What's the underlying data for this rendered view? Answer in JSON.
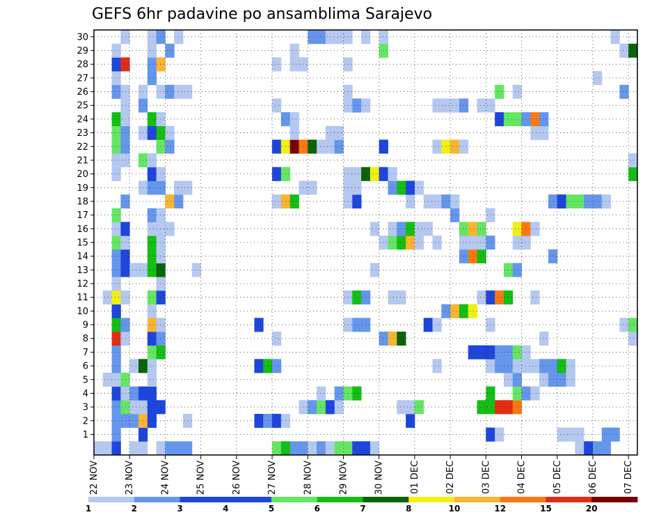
{
  "chart_data": {
    "type": "heatmap",
    "title": "GEFS 6hr padavine po ansamblima Sarajevo",
    "x_labels": [
      "22 NOV",
      "23 NOV",
      "24 NOV",
      "25 NOV",
      "26 NOV",
      "27 NOV",
      "28 NOV",
      "29 NOV",
      "30 NOV",
      "01 DEC",
      "02 DEC",
      "03 DEC",
      "04 DEC",
      "05 DEC",
      "06 DEC",
      "07 DEC"
    ],
    "y_ticks": [
      1,
      2,
      3,
      4,
      5,
      6,
      7,
      8,
      9,
      10,
      11,
      12,
      13,
      14,
      15,
      16,
      17,
      18,
      19,
      20,
      21,
      22,
      23,
      24,
      25,
      26,
      27,
      28,
      29,
      30
    ],
    "grid": true,
    "legend": {
      "placement": "bottom",
      "labels": [
        "1",
        "2",
        "3",
        "4",
        "5",
        "6",
        "7",
        "8",
        "10",
        "12",
        "15",
        "20"
      ],
      "colors": [
        "#b4c8f0",
        "#6496eb",
        "#1e46dc",
        "#1e46dc",
        "#64e664",
        "#14be14",
        "#0a640a",
        "#f0f014",
        "#fab432",
        "#fa7814",
        "#e12d14",
        "#780000"
      ]
    },
    "levels": [
      "#b4c8f0",
      "#6496eb",
      "#1e46dc",
      "#64e664",
      "#14be14",
      "#0a640a",
      "#f0f014",
      "#fab432",
      "#fa7814",
      "#e12d14",
      "#780000"
    ],
    "cells": [
      [
        0,
        0,
        1
      ],
      [
        1,
        0,
        1
      ],
      [
        2,
        0,
        3
      ],
      [
        4,
        0,
        1
      ],
      [
        5,
        0,
        1
      ],
      [
        7,
        0,
        1
      ],
      [
        8,
        0,
        2
      ],
      [
        9,
        0,
        2
      ],
      [
        10,
        0,
        2
      ],
      [
        20,
        0,
        4
      ],
      [
        21,
        0,
        5
      ],
      [
        22,
        0,
        2
      ],
      [
        23,
        0,
        2
      ],
      [
        24,
        0,
        1
      ],
      [
        25,
        0,
        2
      ],
      [
        26,
        0,
        1
      ],
      [
        27,
        0,
        4
      ],
      [
        28,
        0,
        4
      ],
      [
        29,
        0,
        3
      ],
      [
        30,
        0,
        3
      ],
      [
        31,
        0,
        1
      ],
      [
        54,
        0,
        1
      ],
      [
        55,
        0,
        3
      ],
      [
        56,
        0,
        2
      ],
      [
        57,
        0,
        2
      ],
      [
        2,
        1,
        2
      ],
      [
        5,
        1,
        3
      ],
      [
        44,
        1,
        3
      ],
      [
        45,
        1,
        1
      ],
      [
        52,
        1,
        1
      ],
      [
        53,
        1,
        1
      ],
      [
        54,
        1,
        1
      ],
      [
        57,
        1,
        2
      ],
      [
        58,
        1,
        2
      ],
      [
        2,
        2,
        2
      ],
      [
        3,
        2,
        2
      ],
      [
        4,
        2,
        2
      ],
      [
        5,
        2,
        8
      ],
      [
        6,
        2,
        3
      ],
      [
        10,
        2,
        1
      ],
      [
        18,
        2,
        3
      ],
      [
        19,
        2,
        2
      ],
      [
        20,
        2,
        3
      ],
      [
        21,
        2,
        1
      ],
      [
        35,
        2,
        3
      ],
      [
        2,
        3,
        2
      ],
      [
        3,
        3,
        4
      ],
      [
        4,
        3,
        1
      ],
      [
        5,
        3,
        1
      ],
      [
        6,
        3,
        3
      ],
      [
        7,
        3,
        3
      ],
      [
        23,
        3,
        1
      ],
      [
        24,
        3,
        2
      ],
      [
        25,
        3,
        4
      ],
      [
        26,
        3,
        3
      ],
      [
        27,
        3,
        1
      ],
      [
        34,
        3,
        1
      ],
      [
        35,
        3,
        1
      ],
      [
        36,
        3,
        4
      ],
      [
        43,
        3,
        5
      ],
      [
        44,
        3,
        5
      ],
      [
        45,
        3,
        10
      ],
      [
        46,
        3,
        10
      ],
      [
        47,
        3,
        9
      ],
      [
        2,
        4,
        3
      ],
      [
        3,
        4,
        1
      ],
      [
        4,
        4,
        2
      ],
      [
        5,
        4,
        3
      ],
      [
        6,
        4,
        3
      ],
      [
        25,
        4,
        1
      ],
      [
        27,
        4,
        2
      ],
      [
        28,
        4,
        4
      ],
      [
        29,
        4,
        5
      ],
      [
        44,
        4,
        5
      ],
      [
        47,
        4,
        4
      ],
      [
        48,
        4,
        2
      ],
      [
        49,
        4,
        1
      ],
      [
        1,
        5,
        1
      ],
      [
        2,
        5,
        1
      ],
      [
        3,
        5,
        4
      ],
      [
        6,
        5,
        1
      ],
      [
        46,
        5,
        1
      ],
      [
        47,
        5,
        2
      ],
      [
        50,
        5,
        1
      ],
      [
        51,
        5,
        2
      ],
      [
        52,
        5,
        2
      ],
      [
        53,
        5,
        1
      ],
      [
        2,
        6,
        2
      ],
      [
        4,
        6,
        1
      ],
      [
        5,
        6,
        6
      ],
      [
        6,
        6,
        1
      ],
      [
        18,
        6,
        3
      ],
      [
        19,
        6,
        5
      ],
      [
        20,
        6,
        2
      ],
      [
        38,
        6,
        1
      ],
      [
        44,
        6,
        1
      ],
      [
        45,
        6,
        2
      ],
      [
        46,
        6,
        2
      ],
      [
        47,
        6,
        1
      ],
      [
        48,
        6,
        1
      ],
      [
        49,
        6,
        1
      ],
      [
        50,
        6,
        2
      ],
      [
        51,
        6,
        2
      ],
      [
        52,
        6,
        5
      ],
      [
        53,
        6,
        1
      ],
      [
        2,
        7,
        2
      ],
      [
        6,
        7,
        4
      ],
      [
        7,
        7,
        5
      ],
      [
        42,
        7,
        3
      ],
      [
        43,
        7,
        3
      ],
      [
        44,
        7,
        3
      ],
      [
        45,
        7,
        2
      ],
      [
        46,
        7,
        2
      ],
      [
        47,
        7,
        4
      ],
      [
        48,
        7,
        1
      ],
      [
        2,
        8,
        10
      ],
      [
        3,
        8,
        1
      ],
      [
        6,
        8,
        3
      ],
      [
        7,
        8,
        2
      ],
      [
        20,
        8,
        1
      ],
      [
        32,
        8,
        2
      ],
      [
        33,
        8,
        8
      ],
      [
        34,
        8,
        6
      ],
      [
        50,
        8,
        1
      ],
      [
        60,
        8,
        1
      ],
      [
        2,
        9,
        5
      ],
      [
        3,
        9,
        2
      ],
      [
        6,
        9,
        8
      ],
      [
        7,
        9,
        1
      ],
      [
        18,
        9,
        3
      ],
      [
        28,
        9,
        1
      ],
      [
        29,
        9,
        2
      ],
      [
        30,
        9,
        2
      ],
      [
        37,
        9,
        3
      ],
      [
        38,
        9,
        1
      ],
      [
        44,
        9,
        1
      ],
      [
        59,
        9,
        1
      ],
      [
        60,
        9,
        4
      ],
      [
        2,
        10,
        3
      ],
      [
        6,
        10,
        1
      ],
      [
        39,
        10,
        2
      ],
      [
        40,
        10,
        8
      ],
      [
        41,
        10,
        5
      ],
      [
        42,
        10,
        7
      ],
      [
        1,
        11,
        1
      ],
      [
        2,
        11,
        7
      ],
      [
        3,
        11,
        1
      ],
      [
        6,
        11,
        4
      ],
      [
        7,
        11,
        3
      ],
      [
        28,
        11,
        1
      ],
      [
        29,
        11,
        5
      ],
      [
        30,
        11,
        2
      ],
      [
        33,
        11,
        1
      ],
      [
        34,
        11,
        1
      ],
      [
        43,
        11,
        1
      ],
      [
        44,
        11,
        3
      ],
      [
        45,
        11,
        9
      ],
      [
        46,
        11,
        5
      ],
      [
        49,
        11,
        1
      ],
      [
        2,
        12,
        1
      ],
      [
        7,
        12,
        1
      ],
      [
        2,
        13,
        2
      ],
      [
        3,
        13,
        3
      ],
      [
        4,
        13,
        1
      ],
      [
        5,
        13,
        1
      ],
      [
        6,
        13,
        5
      ],
      [
        7,
        13,
        6
      ],
      [
        11,
        13,
        1
      ],
      [
        31,
        13,
        1
      ],
      [
        46,
        13,
        4
      ],
      [
        47,
        13,
        2
      ],
      [
        2,
        14,
        2
      ],
      [
        3,
        14,
        3
      ],
      [
        6,
        14,
        5
      ],
      [
        7,
        14,
        1
      ],
      [
        41,
        14,
        2
      ],
      [
        42,
        14,
        9
      ],
      [
        43,
        14,
        5
      ],
      [
        51,
        14,
        2
      ],
      [
        2,
        15,
        4
      ],
      [
        3,
        15,
        1
      ],
      [
        6,
        15,
        5
      ],
      [
        7,
        15,
        1
      ],
      [
        32,
        15,
        1
      ],
      [
        33,
        15,
        4
      ],
      [
        34,
        15,
        5
      ],
      [
        35,
        15,
        8
      ],
      [
        36,
        15,
        1
      ],
      [
        38,
        15,
        1
      ],
      [
        41,
        15,
        1
      ],
      [
        42,
        15,
        1
      ],
      [
        43,
        15,
        1
      ],
      [
        44,
        15,
        2
      ],
      [
        47,
        15,
        1
      ],
      [
        48,
        15,
        1
      ],
      [
        2,
        16,
        1
      ],
      [
        3,
        16,
        3
      ],
      [
        6,
        16,
        1
      ],
      [
        7,
        16,
        1
      ],
      [
        8,
        16,
        1
      ],
      [
        31,
        16,
        1
      ],
      [
        33,
        16,
        1
      ],
      [
        34,
        16,
        2
      ],
      [
        35,
        16,
        5
      ],
      [
        36,
        16,
        1
      ],
      [
        37,
        16,
        1
      ],
      [
        41,
        16,
        4
      ],
      [
        42,
        16,
        8
      ],
      [
        43,
        16,
        4
      ],
      [
        47,
        16,
        7
      ],
      [
        48,
        16,
        9
      ],
      [
        49,
        16,
        1
      ],
      [
        2,
        17,
        4
      ],
      [
        6,
        17,
        2
      ],
      [
        7,
        17,
        1
      ],
      [
        40,
        17,
        2
      ],
      [
        44,
        17,
        1
      ],
      [
        3,
        18,
        2
      ],
      [
        8,
        18,
        8
      ],
      [
        9,
        18,
        2
      ],
      [
        20,
        18,
        1
      ],
      [
        21,
        18,
        8
      ],
      [
        22,
        18,
        5
      ],
      [
        28,
        18,
        1
      ],
      [
        29,
        18,
        3
      ],
      [
        35,
        18,
        1
      ],
      [
        37,
        18,
        1
      ],
      [
        38,
        18,
        1
      ],
      [
        39,
        18,
        2
      ],
      [
        40,
        18,
        1
      ],
      [
        51,
        18,
        2
      ],
      [
        52,
        18,
        3
      ],
      [
        53,
        18,
        4
      ],
      [
        54,
        18,
        4
      ],
      [
        55,
        18,
        2
      ],
      [
        56,
        18,
        2
      ],
      [
        57,
        18,
        1
      ],
      [
        5,
        19,
        1
      ],
      [
        6,
        19,
        2
      ],
      [
        7,
        19,
        2
      ],
      [
        9,
        19,
        1
      ],
      [
        10,
        19,
        1
      ],
      [
        23,
        19,
        1
      ],
      [
        24,
        19,
        1
      ],
      [
        28,
        19,
        1
      ],
      [
        29,
        19,
        1
      ],
      [
        33,
        19,
        2
      ],
      [
        34,
        19,
        5
      ],
      [
        35,
        19,
        3
      ],
      [
        36,
        19,
        1
      ],
      [
        2,
        20,
        1
      ],
      [
        6,
        20,
        3
      ],
      [
        7,
        20,
        1
      ],
      [
        20,
        20,
        3
      ],
      [
        21,
        20,
        4
      ],
      [
        28,
        20,
        1
      ],
      [
        29,
        20,
        1
      ],
      [
        30,
        20,
        6
      ],
      [
        31,
        20,
        7
      ],
      [
        32,
        20,
        3
      ],
      [
        33,
        20,
        1
      ],
      [
        60,
        20,
        5
      ],
      [
        2,
        21,
        1
      ],
      [
        3,
        21,
        1
      ],
      [
        5,
        21,
        4
      ],
      [
        6,
        21,
        1
      ],
      [
        60,
        21,
        1
      ],
      [
        2,
        22,
        4
      ],
      [
        3,
        22,
        2
      ],
      [
        7,
        22,
        4
      ],
      [
        8,
        22,
        2
      ],
      [
        20,
        22,
        3
      ],
      [
        21,
        22,
        7
      ],
      [
        22,
        22,
        11
      ],
      [
        23,
        22,
        9
      ],
      [
        24,
        22,
        6
      ],
      [
        25,
        22,
        1
      ],
      [
        26,
        22,
        1
      ],
      [
        27,
        22,
        2
      ],
      [
        32,
        22,
        3
      ],
      [
        38,
        22,
        1
      ],
      [
        39,
        22,
        7
      ],
      [
        40,
        22,
        8
      ],
      [
        41,
        22,
        1
      ],
      [
        2,
        23,
        4
      ],
      [
        3,
        23,
        2
      ],
      [
        5,
        23,
        1
      ],
      [
        6,
        23,
        3
      ],
      [
        7,
        23,
        5
      ],
      [
        8,
        23,
        1
      ],
      [
        22,
        23,
        1
      ],
      [
        26,
        23,
        1
      ],
      [
        27,
        23,
        1
      ],
      [
        49,
        23,
        1
      ],
      [
        50,
        23,
        1
      ],
      [
        2,
        24,
        5
      ],
      [
        3,
        24,
        1
      ],
      [
        6,
        24,
        5
      ],
      [
        7,
        24,
        1
      ],
      [
        21,
        24,
        2
      ],
      [
        22,
        24,
        1
      ],
      [
        45,
        24,
        3
      ],
      [
        46,
        24,
        4
      ],
      [
        47,
        24,
        4
      ],
      [
        48,
        24,
        2
      ],
      [
        49,
        24,
        9
      ],
      [
        50,
        24,
        2
      ],
      [
        3,
        25,
        1
      ],
      [
        5,
        25,
        2
      ],
      [
        20,
        25,
        1
      ],
      [
        28,
        25,
        1
      ],
      [
        29,
        25,
        2
      ],
      [
        30,
        25,
        1
      ],
      [
        38,
        25,
        1
      ],
      [
        39,
        25,
        1
      ],
      [
        40,
        25,
        1
      ],
      [
        41,
        25,
        2
      ],
      [
        43,
        25,
        1
      ],
      [
        44,
        25,
        1
      ],
      [
        2,
        26,
        2
      ],
      [
        3,
        26,
        1
      ],
      [
        5,
        26,
        1
      ],
      [
        7,
        26,
        1
      ],
      [
        8,
        26,
        2
      ],
      [
        9,
        26,
        1
      ],
      [
        10,
        26,
        1
      ],
      [
        28,
        26,
        1
      ],
      [
        45,
        26,
        4
      ],
      [
        47,
        26,
        1
      ],
      [
        59,
        26,
        2
      ],
      [
        2,
        27,
        1
      ],
      [
        6,
        27,
        2
      ],
      [
        56,
        27,
        1
      ],
      [
        2,
        28,
        3
      ],
      [
        3,
        28,
        10
      ],
      [
        6,
        28,
        2
      ],
      [
        7,
        28,
        8
      ],
      [
        20,
        28,
        1
      ],
      [
        22,
        28,
        1
      ],
      [
        23,
        28,
        1
      ],
      [
        28,
        28,
        1
      ],
      [
        2,
        29,
        1
      ],
      [
        6,
        29,
        1
      ],
      [
        8,
        29,
        2
      ],
      [
        22,
        29,
        1
      ],
      [
        32,
        29,
        4
      ],
      [
        59,
        29,
        1
      ],
      [
        60,
        29,
        6
      ],
      [
        3,
        30,
        1
      ],
      [
        6,
        30,
        1
      ],
      [
        7,
        30,
        2
      ],
      [
        9,
        30,
        1
      ],
      [
        24,
        30,
        2
      ],
      [
        25,
        30,
        2
      ],
      [
        26,
        30,
        1
      ],
      [
        27,
        30,
        1
      ],
      [
        28,
        30,
        1
      ],
      [
        30,
        30,
        1
      ],
      [
        32,
        30,
        1
      ],
      [
        58,
        30,
        1
      ]
    ]
  }
}
